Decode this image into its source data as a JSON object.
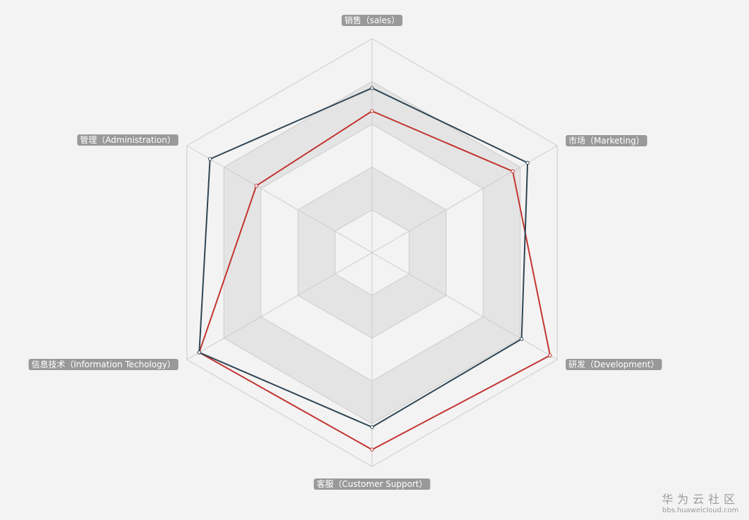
{
  "chart_data": {
    "type": "radar",
    "indicators": [
      {
        "name": "销售（sales）",
        "max": 6500
      },
      {
        "name": "管理（Administration）",
        "max": 16000
      },
      {
        "name": "信息技术（Information Techology）",
        "max": 30000
      },
      {
        "name": "客服（Customer Support）",
        "max": 38000
      },
      {
        "name": "研发（Development）",
        "max": 52000
      },
      {
        "name": "市场（Marketing）",
        "max": 25000
      }
    ],
    "series": [
      {
        "values": [
          4300,
          10000,
          28000,
          35000,
          50000,
          19000
        ],
        "color": "#c23531"
      },
      {
        "values": [
          5000,
          14000,
          28000,
          31000,
          42000,
          21000
        ],
        "color": "#2f4554"
      }
    ],
    "split_number": 5,
    "shape": "polygon"
  },
  "watermark": {
    "brand": "华为云社区",
    "url": "bbs.huaweicloud.com"
  }
}
